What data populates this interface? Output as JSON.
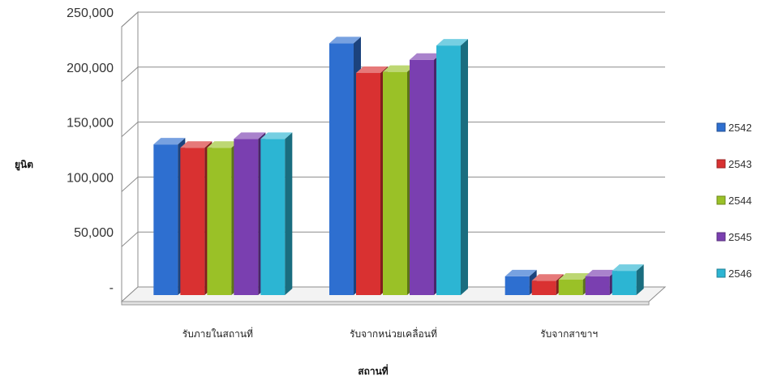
{
  "chart_data": {
    "type": "bar",
    "style": "3d-clustered-column",
    "title": "",
    "xlabel": "สถานที่",
    "ylabel": "ยูนิต",
    "ylim": [
      0,
      250000
    ],
    "yticks": [
      "250,000",
      "200,000",
      "150,000",
      "100,000",
      "50,000",
      "-"
    ],
    "grid": true,
    "legend_position": "right",
    "categories": [
      "รับภายในสถานที่",
      "รับจากหน่วยเคลื่อนที่",
      "รับจากสาขาฯ"
    ],
    "series": [
      {
        "name": "2542",
        "color": "#2e6fd0",
        "values": [
          140000,
          232000,
          20000
        ]
      },
      {
        "name": "2543",
        "color": "#d93131",
        "values": [
          137000,
          205000,
          16000
        ]
      },
      {
        "name": "2544",
        "color": "#9ac127",
        "values": [
          137000,
          206000,
          17000
        ]
      },
      {
        "name": "2545",
        "color": "#7a3fb0",
        "values": [
          145000,
          217000,
          20000
        ]
      },
      {
        "name": "2546",
        "color": "#2cb5d3",
        "values": [
          145000,
          230000,
          25000
        ]
      }
    ]
  }
}
